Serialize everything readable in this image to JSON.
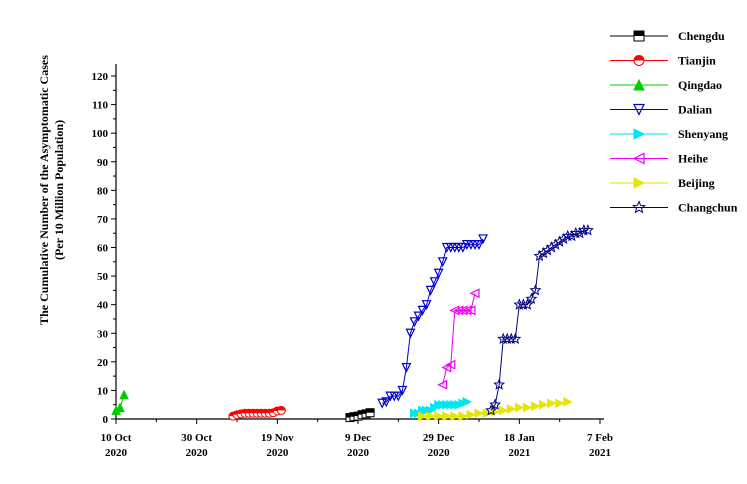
{
  "chart_data": {
    "type": "scatter",
    "ylabel": [
      "The Cumulative Number of the Asymptomatic Cases",
      "(Per 10 Million Population)"
    ],
    "xlabel": "",
    "ylim": [
      0,
      120
    ],
    "yticks": [
      0,
      10,
      20,
      30,
      40,
      50,
      60,
      70,
      80,
      90,
      100,
      110,
      120
    ],
    "xlim": [
      "2020-10-10",
      "2021-02-07"
    ],
    "xticks": [
      {
        "date": "2020-10-10",
        "label1": "10 Oct",
        "label2": "2020"
      },
      {
        "date": "2020-10-30",
        "label1": "30 Oct",
        "label2": "2020"
      },
      {
        "date": "2020-11-19",
        "label1": "19 Nov",
        "label2": "2020"
      },
      {
        "date": "2020-12-09",
        "label1": "9 Dec",
        "label2": "2020"
      },
      {
        "date": "2020-12-29",
        "label1": "29 Dec",
        "label2": "2020"
      },
      {
        "date": "2021-01-18",
        "label1": "18 Jan",
        "label2": "2021"
      },
      {
        "date": "2021-02-07",
        "label1": "7 Feb",
        "label2": "2021"
      }
    ],
    "legend_position": "top-right",
    "grid": false,
    "series": [
      {
        "name": "Chengdu",
        "color": "#000000",
        "marker": "square-half",
        "x": [
          "2020-12-07",
          "2020-12-08",
          "2020-12-09",
          "2020-12-10",
          "2020-12-11",
          "2020-12-12"
        ],
        "y": [
          0.5,
          0.8,
          1,
          1.5,
          1.8,
          2.2
        ]
      },
      {
        "name": "Tianjin",
        "color": "#ff0000",
        "marker": "circle-half",
        "x": [
          "2020-11-08",
          "2020-11-09",
          "2020-11-10",
          "2020-11-11",
          "2020-11-12",
          "2020-11-13",
          "2020-11-14",
          "2020-11-15",
          "2020-11-16",
          "2020-11-17",
          "2020-11-18",
          "2020-11-19",
          "2020-11-20"
        ],
        "y": [
          1,
          1.5,
          1.8,
          2,
          2,
          2,
          2,
          2,
          2,
          2,
          2.2,
          2.8,
          3
        ]
      },
      {
        "name": "Qingdao",
        "color": "#00cc00",
        "marker": "triangle-up",
        "x": [
          "2020-10-10",
          "2020-10-11",
          "2020-10-12"
        ],
        "y": [
          3,
          4,
          8.5
        ]
      },
      {
        "name": "Dalian",
        "color": "#0000cc",
        "marker": "triangle-down",
        "x": [
          "2020-12-15",
          "2020-12-16",
          "2020-12-17",
          "2020-12-18",
          "2020-12-19",
          "2020-12-20",
          "2020-12-21",
          "2020-12-22",
          "2020-12-23",
          "2020-12-24",
          "2020-12-25",
          "2020-12-26",
          "2020-12-27",
          "2020-12-28",
          "2020-12-29",
          "2020-12-30",
          "2020-12-31",
          "2021-01-01",
          "2021-01-02",
          "2021-01-03",
          "2021-01-04",
          "2021-01-05",
          "2021-01-06",
          "2021-01-07",
          "2021-01-08",
          "2021-01-09"
        ],
        "y": [
          5.5,
          6,
          8,
          8,
          8,
          10,
          18,
          30,
          34,
          36,
          38,
          40,
          45,
          48,
          51,
          55,
          60,
          60,
          60,
          60,
          60,
          61,
          61,
          61,
          61,
          63
        ]
      },
      {
        "name": "Shenyang",
        "color": "#00e5ee",
        "marker": "triangle-right",
        "x": [
          "2020-12-23",
          "2020-12-24",
          "2020-12-25",
          "2020-12-26",
          "2020-12-27",
          "2020-12-28",
          "2020-12-29",
          "2020-12-30",
          "2020-12-31",
          "2021-01-01",
          "2021-01-02",
          "2021-01-03",
          "2021-01-04",
          "2021-01-05"
        ],
        "y": [
          2,
          2,
          3,
          3,
          3,
          4,
          5,
          5,
          5,
          5,
          5,
          5,
          5.5,
          6
        ]
      },
      {
        "name": "Heihe",
        "color": "#ee00ee",
        "marker": "triangle-left",
        "x": [
          "2020-12-30",
          "2020-12-31",
          "2021-01-01",
          "2021-01-02",
          "2021-01-03",
          "2021-01-04",
          "2021-01-05",
          "2021-01-06",
          "2021-01-07"
        ],
        "y": [
          12,
          18,
          19,
          38,
          38,
          38,
          38,
          38,
          44
        ]
      },
      {
        "name": "Beijing",
        "color": "#e6e600",
        "marker": "triangle-right",
        "x": [
          "2020-12-25",
          "2020-12-27",
          "2020-12-29",
          "2020-12-31",
          "2021-01-02",
          "2021-01-04",
          "2021-01-06",
          "2021-01-08",
          "2021-01-10",
          "2021-01-12",
          "2021-01-14",
          "2021-01-16",
          "2021-01-18",
          "2021-01-20",
          "2021-01-22",
          "2021-01-24",
          "2021-01-26",
          "2021-01-28",
          "2021-01-30"
        ],
        "y": [
          1,
          1,
          1,
          1,
          1,
          1,
          1.5,
          2,
          2,
          2.5,
          3,
          3.5,
          4,
          4,
          4.5,
          5,
          5.5,
          5.5,
          6
        ]
      },
      {
        "name": "Changchun",
        "color": "#000080",
        "marker": "star",
        "x": [
          "2021-01-11",
          "2021-01-12",
          "2021-01-13",
          "2021-01-14",
          "2021-01-15",
          "2021-01-16",
          "2021-01-17",
          "2021-01-18",
          "2021-01-19",
          "2021-01-20",
          "2021-01-21",
          "2021-01-22",
          "2021-01-23",
          "2021-01-24",
          "2021-01-25",
          "2021-01-26",
          "2021-01-27",
          "2021-01-28",
          "2021-01-29",
          "2021-01-30",
          "2021-01-31",
          "2021-02-01",
          "2021-02-02",
          "2021-02-03",
          "2021-02-04"
        ],
        "y": [
          3,
          5,
          12,
          28,
          28,
          28,
          28,
          40,
          40,
          40,
          42,
          45,
          57,
          58,
          59,
          60,
          61,
          62,
          63,
          64,
          64,
          65,
          65,
          66,
          66
        ]
      }
    ]
  }
}
